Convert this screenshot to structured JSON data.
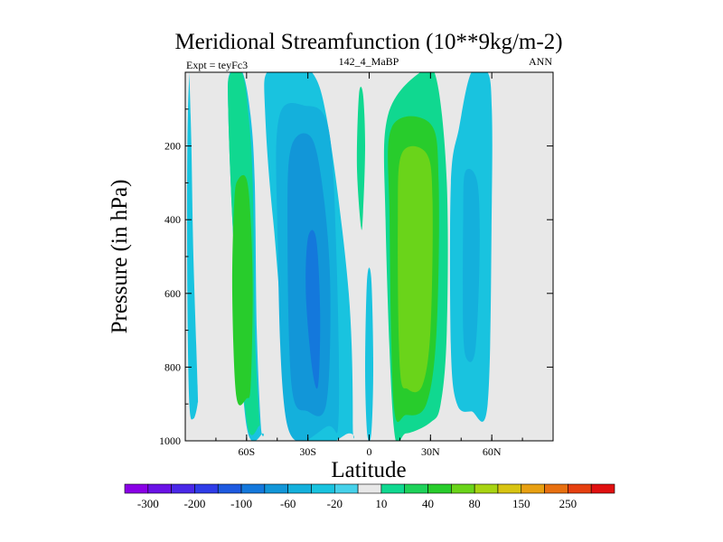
{
  "chart_data": {
    "type": "contour",
    "title": "Meridional Streamfunction (10**9kg/m-2)",
    "left_subtitle": "Expt = teyFc3",
    "center_subtitle": "142_4_MaBP",
    "right_subtitle": "ANN",
    "xlabel": "Latitude",
    "ylabel": "Pressure (in hPa)",
    "xlim": [
      -90,
      90
    ],
    "ylim": [
      1000,
      0
    ],
    "x_ticks": [
      {
        "value": -60,
        "label": "60S"
      },
      {
        "value": -30,
        "label": "30S"
      },
      {
        "value": 0,
        "label": "0"
      },
      {
        "value": 30,
        "label": "30N"
      },
      {
        "value": 60,
        "label": "60N"
      }
    ],
    "y_ticks": [
      {
        "value": 200,
        "label": "200"
      },
      {
        "value": 400,
        "label": "400"
      },
      {
        "value": 600,
        "label": "600"
      },
      {
        "value": 800,
        "label": "800"
      },
      {
        "value": 1000,
        "label": "1000"
      }
    ],
    "colorbar": {
      "levels": [
        -300,
        -250,
        -200,
        -150,
        -100,
        -80,
        -60,
        -40,
        -20,
        -10,
        10,
        20,
        40,
        60,
        80,
        100,
        150,
        200,
        250,
        300
      ],
      "labels": [
        "-300",
        "-200",
        "-100",
        "-60",
        "-20",
        "10",
        "40",
        "80",
        "150",
        "250"
      ],
      "colors": [
        "#8a00e6",
        "#6a12e6",
        "#4a28e8",
        "#2f3ce8",
        "#1e5ae0",
        "#1478dc",
        "#1296d8",
        "#14b0dc",
        "#19c3df",
        "#46d1ea",
        "#e8e8e8",
        "#10d890",
        "#1ed25a",
        "#28cc2c",
        "#6ad41a",
        "#a8d412",
        "#d8c412",
        "#e8a012",
        "#e87010",
        "#e64010",
        "#e01010"
      ]
    },
    "background_color": "#e8e8e8",
    "regions": [
      {
        "name": "sh-polar-cell",
        "color": "#19c3df",
        "lat": [
          -88,
          -87,
          -86,
          -84,
          -84,
          -86,
          -88,
          -89,
          -89,
          -88
        ],
        "p": [
          0,
          200,
          500,
          850,
          900,
          940,
          900,
          600,
          200,
          0
        ]
      },
      {
        "name": "sh-ferrel-outer",
        "color": "#19c3df",
        "lat": [
          -68,
          -62,
          -58,
          -56,
          -55,
          -53,
          -52,
          -60,
          -66,
          -69
        ],
        "p": [
          0,
          0,
          120,
          300,
          700,
          960,
          980,
          960,
          500,
          100
        ]
      },
      {
        "name": "sh-ferrel-band",
        "color": "#10d890",
        "lat": [
          -68,
          -62,
          -59,
          -57,
          -56,
          -54,
          -54,
          -60,
          -66,
          -69
        ],
        "p": [
          5,
          5,
          120,
          300,
          700,
          920,
          960,
          945,
          500,
          100
        ]
      },
      {
        "name": "sh-ferrel-core",
        "color": "#28cc2c",
        "lat": [
          -64,
          -60,
          -58,
          -57,
          -58,
          -60,
          -65,
          -67,
          -66
        ],
        "p": [
          290,
          290,
          400,
          600,
          850,
          885,
          880,
          600,
          350
        ]
      },
      {
        "name": "sh-hadley-outer",
        "color": "#19c3df",
        "lat": [
          -50,
          -40,
          -28,
          -20,
          -10,
          -8,
          -10,
          -35,
          -47,
          -51
        ],
        "p": [
          0,
          0,
          0,
          150,
          600,
          960,
          980,
          980,
          400,
          100
        ]
      },
      {
        "name": "sh-hadley-mid",
        "color": "#14b0dc",
        "lat": [
          -44,
          -32,
          -20,
          -16,
          -15,
          -20,
          -40,
          -45
        ],
        "p": [
          120,
          90,
          150,
          500,
          940,
          960,
          960,
          400
        ]
      },
      {
        "name": "sh-hadley-inner",
        "color": "#1296d8",
        "lat": [
          -38,
          -28,
          -22,
          -19,
          -21,
          -30,
          -38,
          -40
        ],
        "p": [
          200,
          180,
          350,
          600,
          900,
          920,
          850,
          400
        ]
      },
      {
        "name": "sh-hadley-core",
        "color": "#1478dc",
        "lat": [
          -30,
          -26,
          -24,
          -25,
          -28,
          -31
        ],
        "p": [
          450,
          450,
          650,
          850,
          800,
          600
        ]
      },
      {
        "name": "equatorial-split-upper",
        "color": "#10d890",
        "lat": [
          -5,
          -3,
          -2,
          -3,
          -4,
          -6
        ],
        "p": [
          60,
          60,
          200,
          380,
          420,
          250
        ]
      },
      {
        "name": "equatorial-split-lower",
        "color": "#19c3df",
        "lat": [
          -1,
          1,
          2,
          1,
          -1,
          -2
        ],
        "p": [
          560,
          560,
          800,
          980,
          980,
          800
        ]
      },
      {
        "name": "nh-hadley-outer",
        "color": "#10d890",
        "lat": [
          9,
          25,
          33,
          38,
          38,
          35,
          30,
          18,
          12,
          8
        ],
        "p": [
          120,
          0,
          20,
          300,
          700,
          900,
          950,
          980,
          960,
          400
        ]
      },
      {
        "name": "nh-hadley-mid",
        "color": "#28cc2c",
        "lat": [
          11,
          30,
          34,
          33,
          28,
          18,
          12,
          10
        ],
        "p": [
          150,
          140,
          300,
          700,
          900,
          930,
          900,
          400
        ]
      },
      {
        "name": "nh-hadley-core",
        "color": "#6ad41a",
        "lat": [
          16,
          28,
          31,
          30,
          26,
          19,
          15,
          14
        ],
        "p": [
          220,
          220,
          350,
          700,
          850,
          860,
          800,
          400
        ]
      },
      {
        "name": "nh-ferrel-outer",
        "color": "#19c3df",
        "lat": [
          50,
          58,
          60,
          60,
          58,
          50,
          43,
          40,
          40,
          44
        ],
        "p": [
          0,
          0,
          100,
          350,
          900,
          920,
          900,
          750,
          300,
          150
        ]
      },
      {
        "name": "nh-ferrel-inner",
        "color": "#14b0dc",
        "lat": [
          47,
          53,
          54,
          52,
          48,
          46,
          46
        ],
        "p": [
          270,
          300,
          500,
          750,
          780,
          700,
          400
        ]
      }
    ]
  }
}
